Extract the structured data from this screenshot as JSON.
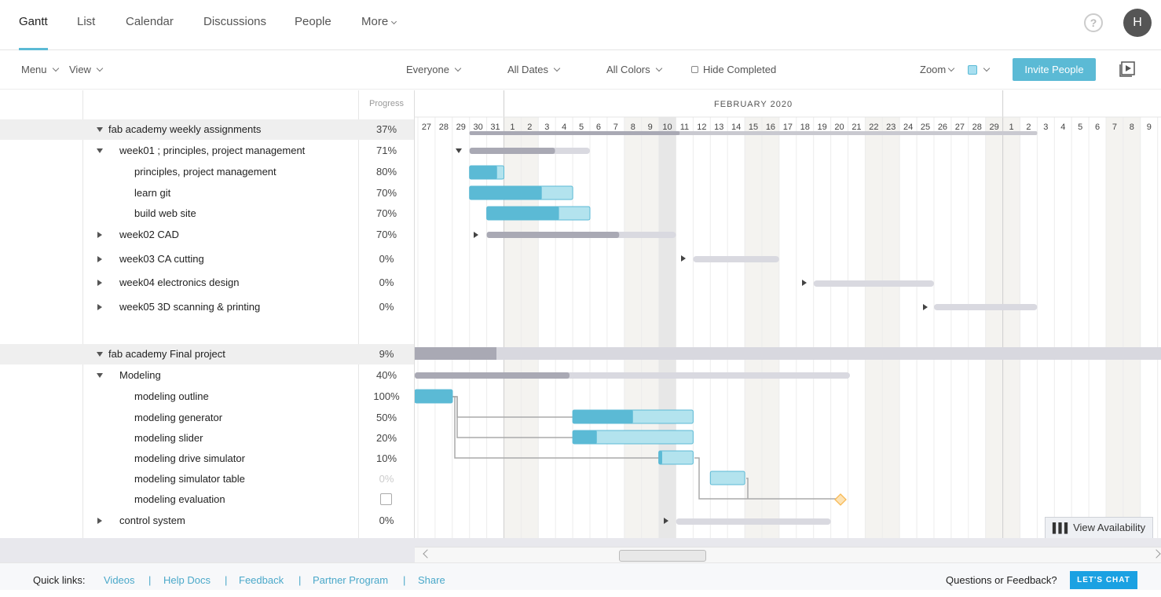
{
  "nav": {
    "tabs": [
      {
        "label": "Gantt",
        "active": true
      },
      {
        "label": "List"
      },
      {
        "label": "Calendar"
      },
      {
        "label": "Discussions"
      },
      {
        "label": "People"
      },
      {
        "label": "More"
      }
    ],
    "help": "?",
    "avatar_letter": "H"
  },
  "toolbar": {
    "menu": "Menu",
    "view": "View",
    "everyone": "Everyone",
    "all_dates": "All Dates",
    "all_colors": "All Colors",
    "hide_completed": "Hide Completed",
    "zoom": "Zoom",
    "invite": "Invite People"
  },
  "grid": {
    "progress_header": "Progress",
    "rows": [
      {
        "name": "fab academy weekly assignments",
        "progress": "37%",
        "level": 0,
        "toggle": "down",
        "group": true
      },
      {
        "name": "week01 ; principles, project management",
        "progress": "71%",
        "level": 1,
        "toggle": "down"
      },
      {
        "name": "principles, project management",
        "progress": "80%",
        "level": 2
      },
      {
        "name": "learn git",
        "progress": "70%",
        "level": 2
      },
      {
        "name": "build web site",
        "progress": "70%",
        "level": 2
      },
      {
        "name": "week02 CAD",
        "progress": "70%",
        "level": 1,
        "toggle": "right"
      },
      {
        "name": "week03 CA cutting",
        "progress": "0%",
        "level": 1,
        "toggle": "right"
      },
      {
        "name": "week04 electronics design",
        "progress": "0%",
        "level": 1,
        "toggle": "right"
      },
      {
        "name": "week05 3D scanning & printing",
        "progress": "0%",
        "level": 1,
        "toggle": "right"
      },
      {
        "name": "fab academy Final project",
        "progress": "9%",
        "level": 0,
        "toggle": "down",
        "group": true
      },
      {
        "name": "Modeling",
        "progress": "40%",
        "level": 1,
        "toggle": "down"
      },
      {
        "name": "modeling outline",
        "progress": "100%",
        "level": 2
      },
      {
        "name": "modeling generator",
        "progress": "50%",
        "level": 2
      },
      {
        "name": "modeling slider",
        "progress": "20%",
        "level": 2
      },
      {
        "name": "modeling drive simulator",
        "progress": "10%",
        "level": 2
      },
      {
        "name": "modeling simulator table",
        "progress": "0%",
        "level": 2,
        "faded": true
      },
      {
        "name": "modeling evaluation",
        "progress": "",
        "level": 2,
        "checkbox": true
      },
      {
        "name": "control system",
        "progress": "0%",
        "level": 1,
        "toggle": "right"
      }
    ]
  },
  "timeline": {
    "month_label": "FEBRUARY 2020",
    "days": [
      "27",
      "28",
      "29",
      "30",
      "31",
      "1",
      "2",
      "3",
      "4",
      "5",
      "6",
      "7",
      "8",
      "9",
      "10",
      "11",
      "12",
      "13",
      "14",
      "15",
      "16",
      "17",
      "18",
      "19",
      "20",
      "21",
      "22",
      "23",
      "24",
      "25",
      "26",
      "27",
      "28",
      "29",
      "1",
      "2",
      "3",
      "4",
      "5",
      "6",
      "7",
      "8",
      "9"
    ],
    "weekend_indices": [
      5,
      6,
      12,
      13,
      19,
      20,
      26,
      27,
      33,
      34,
      40,
      41
    ],
    "today_index": 14,
    "month_start_index": 5,
    "month_end_index": 34
  },
  "view_availability": "View Availability",
  "footer": {
    "quick_links_label": "Quick links:",
    "links": [
      "Videos",
      "Help Docs",
      "Feedback",
      "Partner Program",
      "Share"
    ],
    "separator": "|",
    "questions": "Questions or Feedback?",
    "chat": "LET'S CHAT"
  },
  "colors": {
    "accent": "#5bbad5",
    "bar_light": "#b3e3ee",
    "summary_dark": "#a9a9b4",
    "summary_light": "#d9d9e0",
    "milestone": "#f7b955"
  }
}
